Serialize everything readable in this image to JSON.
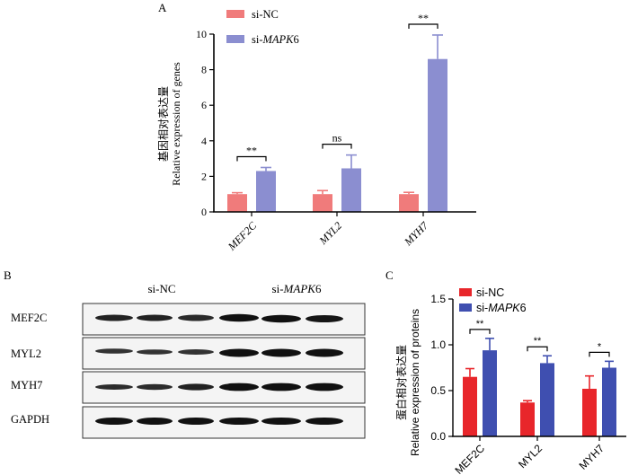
{
  "colors": {
    "nc_top": "#f07b7b",
    "mapk_top": "#8b8ed0",
    "nc_bottom": "#e8262b",
    "mapk_bottom": "#3f4fb0",
    "axis": "#000000"
  },
  "western_blot": {
    "panel_label": "B",
    "group_nc": "si-NC",
    "group_mapk_prefix": "si-",
    "group_mapk_gene": "MAPK",
    "group_mapk_suffix": "6",
    "proteins": [
      "MEF2C",
      "MYL2",
      "MYH7",
      "GAPDH"
    ]
  },
  "chart_data": [
    {
      "type": "bar",
      "panel_label": "A",
      "title": "",
      "ylabel_cn": "基因相对表达量",
      "ylabel": "Relative expression of genes",
      "xlabel": "",
      "categories": [
        "MEF2C",
        "MYL2",
        "MYH7"
      ],
      "ylim": [
        0,
        10
      ],
      "yticks": [
        0,
        2,
        4,
        6,
        8,
        10
      ],
      "legend_position": "top-left",
      "series": [
        {
          "name": "si-NC",
          "name_prefix": "si-",
          "name_gene": "NC",
          "name_suffix": "",
          "values": [
            1.0,
            1.0,
            1.0
          ],
          "errors": [
            0.08,
            0.2,
            0.1
          ]
        },
        {
          "name": "si-MAPK6",
          "name_prefix": "si-",
          "name_gene": "MAPK",
          "name_suffix": "6",
          "values": [
            2.3,
            2.45,
            8.6
          ],
          "errors": [
            0.2,
            0.75,
            1.35
          ]
        }
      ],
      "significance": [
        "**",
        "ns",
        "**"
      ]
    },
    {
      "type": "bar",
      "panel_label": "C",
      "title": "",
      "ylabel_cn": "蛋白相对表达量",
      "ylabel": "Relative expression of proteins",
      "xlabel": "",
      "categories": [
        "MEF2C",
        "MYL2",
        "MYH7"
      ],
      "ylim": [
        0,
        1.5
      ],
      "yticks": [
        "0.0",
        "0.5",
        "1.0",
        "1.5"
      ],
      "legend_position": "top-left",
      "series": [
        {
          "name": "si-NC",
          "name_prefix": "si-",
          "name_gene": "NC",
          "name_suffix": "",
          "values": [
            0.65,
            0.37,
            0.52
          ],
          "errors": [
            0.09,
            0.02,
            0.14
          ]
        },
        {
          "name": "si-MAPK6",
          "name_prefix": "si-",
          "name_gene": "MAPK",
          "name_suffix": "6",
          "values": [
            0.94,
            0.8,
            0.75
          ],
          "errors": [
            0.13,
            0.08,
            0.07
          ]
        }
      ],
      "significance": [
        "**",
        "**",
        "*"
      ]
    }
  ]
}
